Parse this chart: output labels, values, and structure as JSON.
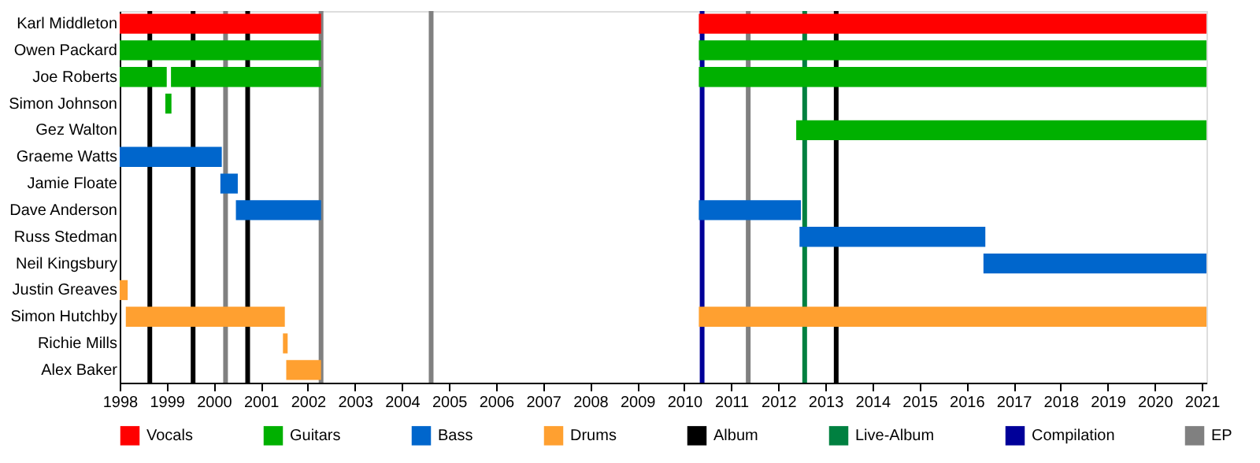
{
  "chart_data": {
    "type": "bar",
    "orientation": "horizontal",
    "categories": [
      "Karl Middleton",
      "Owen Packard",
      "Joe Roberts",
      "Simon Johnson",
      "Gez Walton",
      "Graeme Watts",
      "Jamie Floate",
      "Dave Anderson",
      "Russ Stedman",
      "Neil Kingsbury",
      "Justin Greaves",
      "Simon Hutchby",
      "Richie Mills",
      "Alex Baker"
    ],
    "series": [
      {
        "name": "Vocals",
        "color": "#ff0000",
        "base": [
          1998,
          null,
          null,
          null,
          null,
          null,
          null,
          null,
          null,
          null,
          null,
          null,
          null,
          null
        ],
        "values": [
          4.28,
          null,
          null,
          null,
          null,
          null,
          null,
          null,
          null,
          null,
          null,
          null,
          null,
          null
        ]
      },
      {
        "color": "#ff0000",
        "base": [
          2010.31,
          null,
          null,
          null,
          null,
          null,
          null,
          null,
          null,
          null,
          null,
          null,
          null,
          null
        ],
        "values": [
          10.79,
          null,
          null,
          null,
          null,
          null,
          null,
          null,
          null,
          null,
          null,
          null,
          null,
          null
        ]
      },
      {
        "name": "Guitars",
        "color": "#00b000",
        "base": [
          null,
          1998,
          1998,
          1998.97,
          2012.38,
          null,
          null,
          null,
          null,
          null,
          null,
          null,
          null,
          null
        ],
        "values": [
          null,
          4.28,
          1.0,
          0.13,
          8.72,
          null,
          null,
          null,
          null,
          null,
          null,
          null,
          null,
          null
        ]
      },
      {
        "color": "#00b000",
        "base": [
          null,
          2010.31,
          1999.09,
          null,
          null,
          null,
          null,
          null,
          null,
          null,
          null,
          null,
          null,
          null
        ],
        "values": [
          null,
          10.79,
          3.19,
          null,
          null,
          null,
          null,
          null,
          null,
          null,
          null,
          null,
          null,
          null
        ]
      },
      {
        "color": "#00b000",
        "base": [
          null,
          null,
          2010.31,
          null,
          null,
          null,
          null,
          null,
          null,
          null,
          null,
          null,
          null,
          null
        ],
        "values": [
          null,
          null,
          10.79,
          null,
          null,
          null,
          null,
          null,
          null,
          null,
          null,
          null,
          null,
          null
        ]
      },
      {
        "name": "Bass",
        "color": "#0066cc",
        "base": [
          null,
          null,
          null,
          null,
          null,
          1998,
          2000.14,
          2000.47,
          2012.45,
          2016.36,
          null,
          null,
          null,
          null
        ],
        "values": [
          null,
          null,
          null,
          null,
          null,
          2.17,
          0.37,
          1.81,
          3.95,
          4.74,
          null,
          null,
          null,
          null
        ]
      },
      {
        "color": "#0066cc",
        "base": [
          null,
          null,
          null,
          null,
          null,
          null,
          null,
          2010.31,
          null,
          null,
          null,
          null,
          null,
          null
        ],
        "values": [
          null,
          null,
          null,
          null,
          null,
          null,
          null,
          2.17,
          null,
          null,
          null,
          null,
          null,
          null
        ]
      },
      {
        "name": "Drums",
        "color": "#ffa030",
        "base": [
          null,
          null,
          null,
          null,
          null,
          null,
          null,
          null,
          null,
          null,
          1998,
          1998.13,
          2001.47,
          2001.54
        ],
        "values": [
          null,
          null,
          null,
          null,
          null,
          null,
          null,
          null,
          null,
          null,
          0.17,
          3.38,
          0.1,
          0.74
        ]
      },
      {
        "color": "#ffa030",
        "base": [
          null,
          null,
          null,
          null,
          null,
          null,
          null,
          null,
          null,
          null,
          null,
          2010.31,
          null,
          null
        ],
        "values": [
          null,
          null,
          null,
          null,
          null,
          null,
          null,
          null,
          null,
          null,
          null,
          10.79,
          null,
          null
        ]
      }
    ],
    "ref_lines": [
      {
        "axis": "x",
        "value": 1998.64,
        "label": "Album",
        "color": "#000000"
      },
      {
        "axis": "x",
        "value": 1999.56,
        "color": "#000000"
      },
      {
        "axis": "x",
        "value": 2000.72,
        "color": "#000000"
      },
      {
        "axis": "x",
        "value": 2013.23,
        "color": "#000000"
      },
      {
        "axis": "x",
        "value": 2012.56,
        "label": "Live-Album",
        "color": "#008040"
      },
      {
        "axis": "x",
        "value": 2010.38,
        "label": "Compilation",
        "color": "#000099"
      },
      {
        "axis": "x",
        "value": 2000.25,
        "label": "EP",
        "color": "#808080"
      },
      {
        "axis": "x",
        "value": 2002.28,
        "color": "#808080"
      },
      {
        "axis": "x",
        "value": 2004.62,
        "color": "#808080"
      },
      {
        "axis": "x",
        "value": 2011.36,
        "color": "#808080"
      }
    ],
    "xlim": [
      1998,
      2021.1
    ],
    "xticks": [
      1998,
      1999,
      2000,
      2001,
      2002,
      2003,
      2004,
      2005,
      2006,
      2007,
      2008,
      2009,
      2010,
      2011,
      2012,
      2013,
      2014,
      2015,
      2016,
      2017,
      2018,
      2019,
      2020,
      2021
    ],
    "grid": false,
    "legend": "bottom"
  }
}
